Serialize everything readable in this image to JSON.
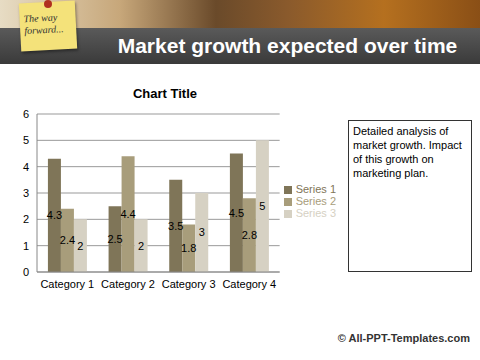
{
  "slide": {
    "note": "The way forward...",
    "title": "Market growth expected over time",
    "text_box": "Detailed analysis of market growth. Impact of this growth on marketing plan.",
    "footer": "© All-PPT-Templates.com"
  },
  "chart_data": {
    "type": "bar",
    "title": "Chart Title",
    "categories": [
      "Category 1",
      "Category 2",
      "Category 3",
      "Category 4"
    ],
    "series": [
      {
        "name": "Series 1",
        "color": "#7f7558",
        "values": [
          4.3,
          2.5,
          3.5,
          4.5
        ]
      },
      {
        "name": "Series 2",
        "color": "#a89d7b",
        "values": [
          2.4,
          4.4,
          1.8,
          2.8
        ]
      },
      {
        "name": "Series 3",
        "color": "#d6d1c3",
        "values": [
          2,
          2,
          3,
          5
        ]
      }
    ],
    "ylim": [
      0,
      6
    ],
    "yticks": [
      0,
      1,
      2,
      3,
      4,
      5,
      6
    ],
    "grid": true,
    "legend": "right",
    "data_labels": true
  }
}
